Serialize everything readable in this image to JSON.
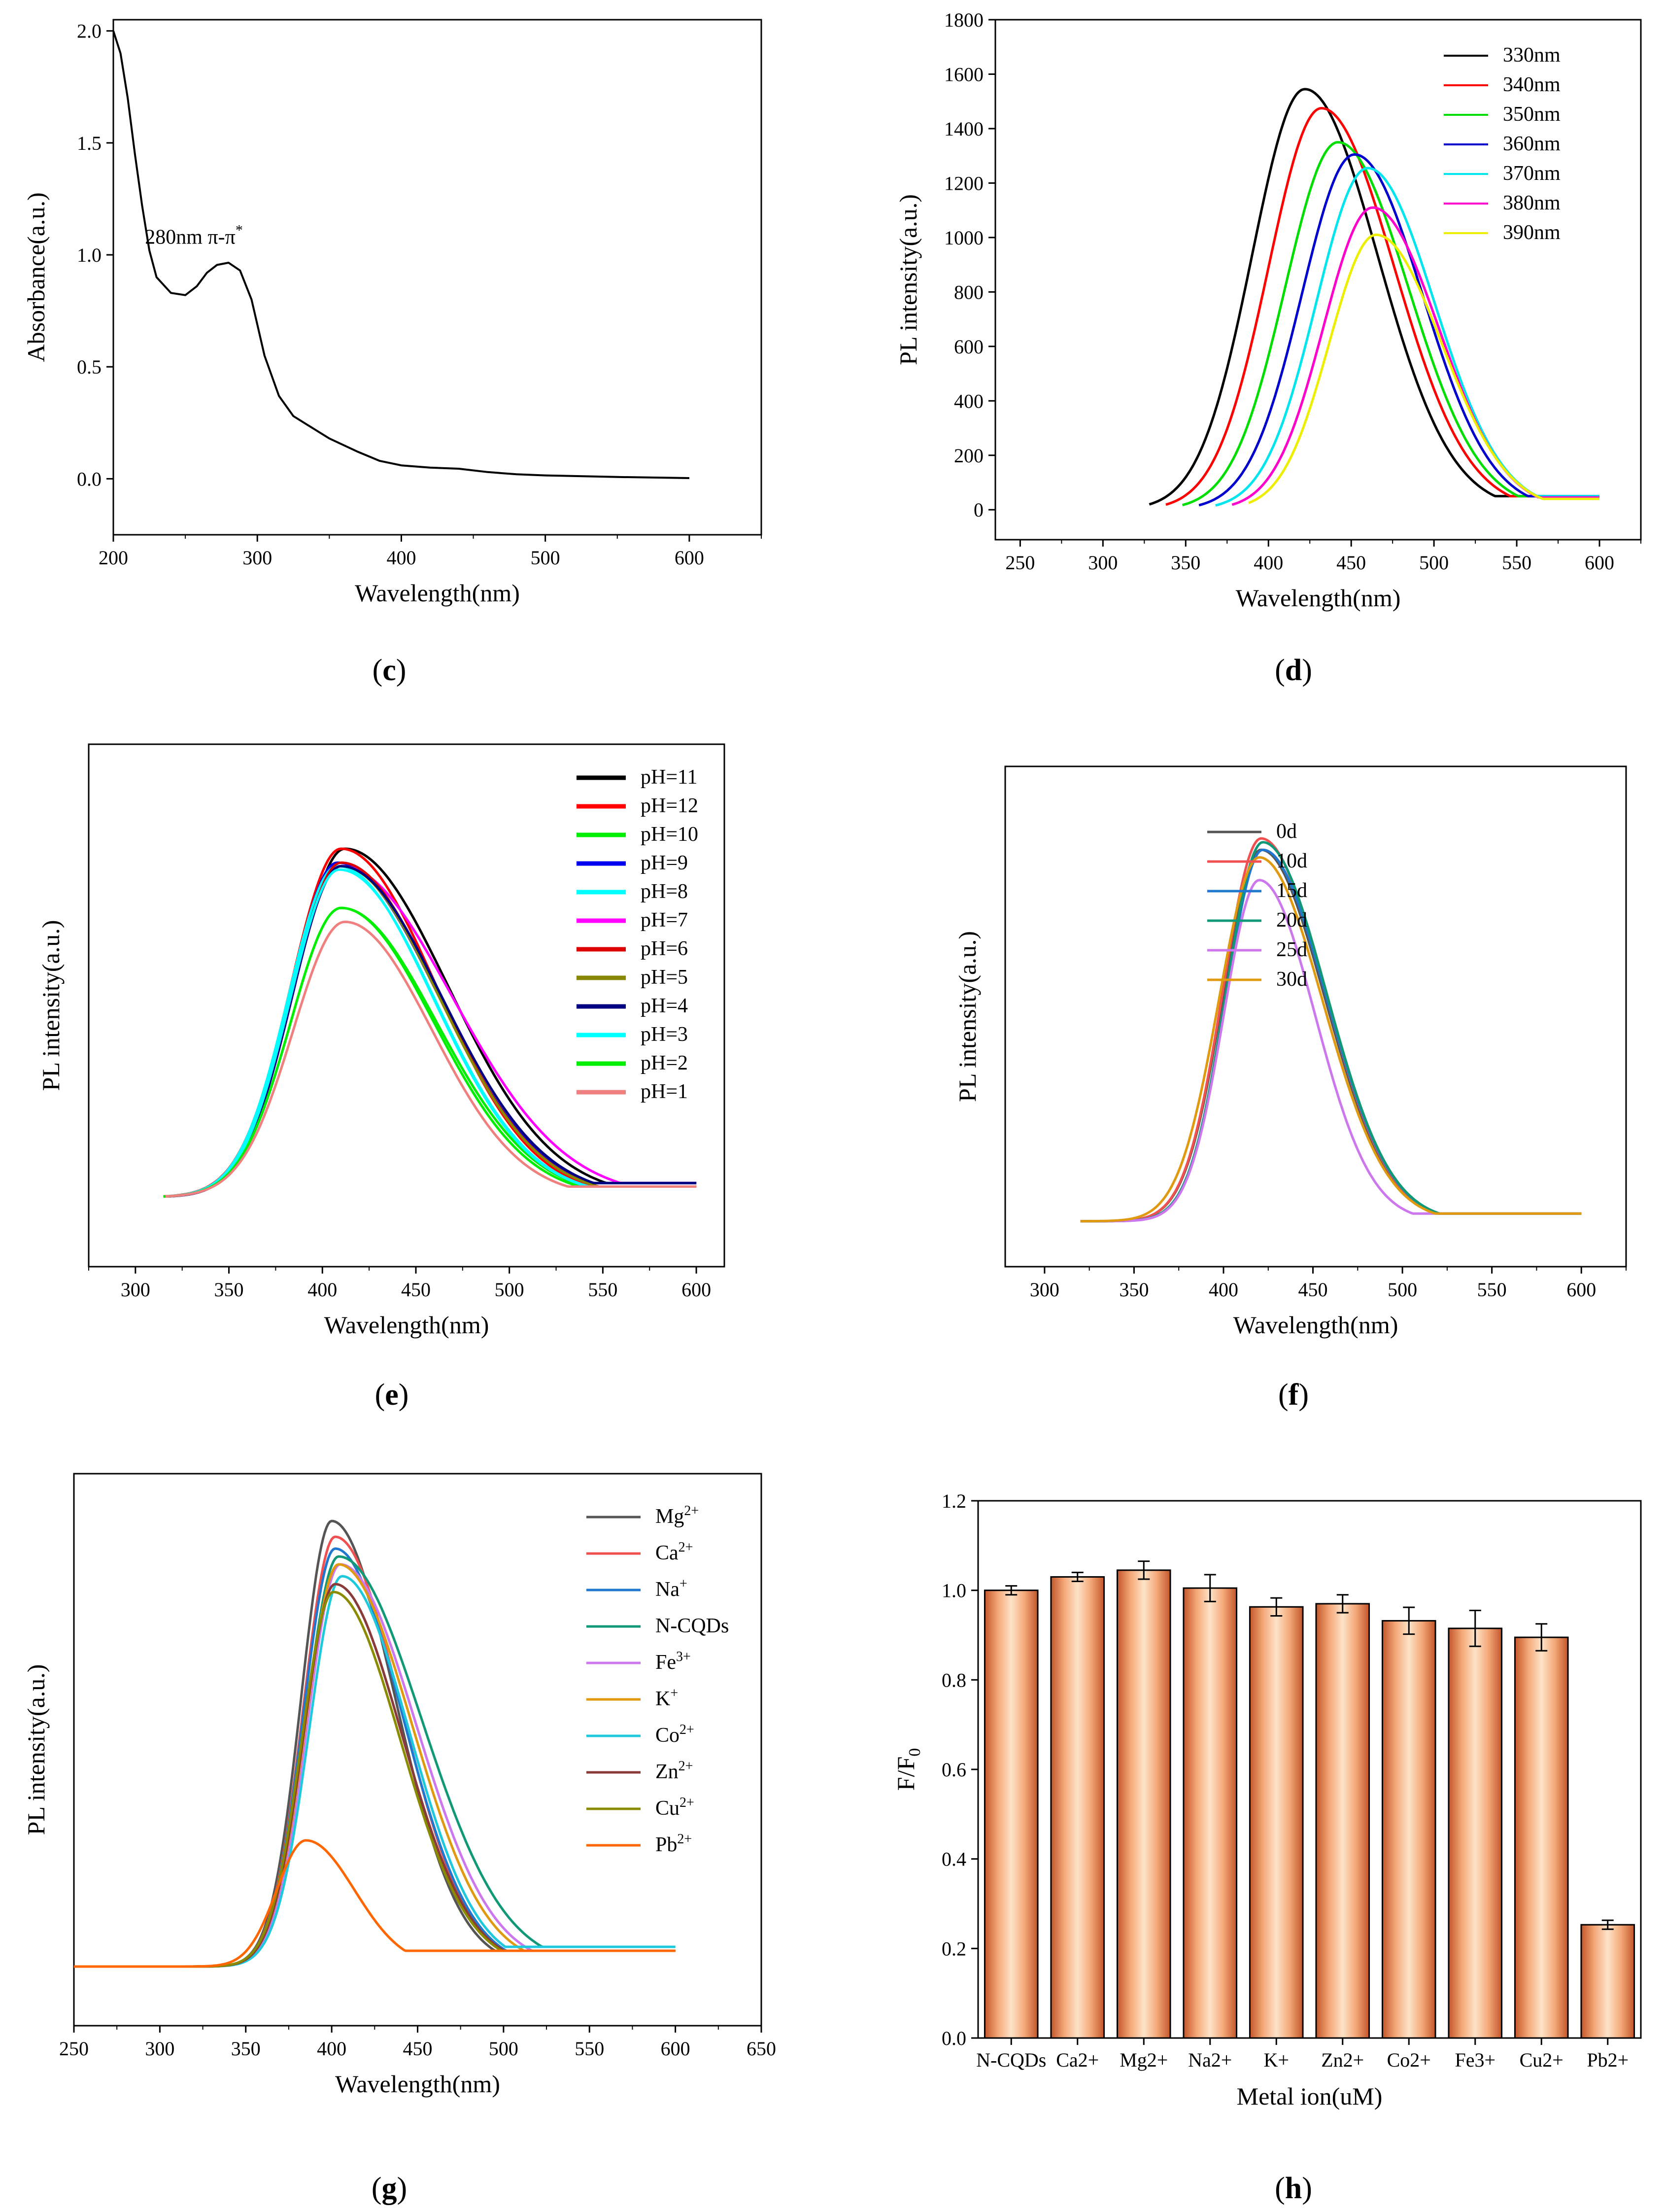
{
  "chart_data": [
    {
      "id": "c",
      "panel_label": "c",
      "type": "line",
      "title": "",
      "xlabel": "Wavelength(nm)",
      "ylabel": "Absorbance(a.u.)",
      "xlim": [
        200,
        650
      ],
      "ylim": [
        -0.25,
        2.05
      ],
      "xticks": [
        200,
        300,
        400,
        500,
        600
      ],
      "yticks": [
        0.0,
        0.5,
        1.0,
        1.5,
        2.0
      ],
      "ytick_labels": [
        "0.0",
        "0.5",
        "1.0",
        "1.5",
        "2.0"
      ],
      "annotation": {
        "text": "280nm π-π",
        "sup": "*",
        "x": 222,
        "y": 1.05
      },
      "series": [
        {
          "name": "Absorbance",
          "color": "#000000",
          "width": 4,
          "points": [
            [
              200,
              2.0
            ],
            [
              205,
              1.9
            ],
            [
              210,
              1.7
            ],
            [
              215,
              1.45
            ],
            [
              220,
              1.22
            ],
            [
              225,
              1.02
            ],
            [
              230,
              0.9
            ],
            [
              240,
              0.83
            ],
            [
              250,
              0.82
            ],
            [
              258,
              0.86
            ],
            [
              265,
              0.92
            ],
            [
              272,
              0.955
            ],
            [
              280,
              0.965
            ],
            [
              288,
              0.93
            ],
            [
              296,
              0.8
            ],
            [
              305,
              0.55
            ],
            [
              315,
              0.37
            ],
            [
              325,
              0.28
            ],
            [
              335,
              0.24
            ],
            [
              350,
              0.18
            ],
            [
              370,
              0.12
            ],
            [
              385,
              0.08
            ],
            [
              400,
              0.06
            ],
            [
              420,
              0.05
            ],
            [
              440,
              0.045
            ],
            [
              460,
              0.03
            ],
            [
              480,
              0.02
            ],
            [
              500,
              0.015
            ],
            [
              550,
              0.008
            ],
            [
              600,
              0.003
            ]
          ]
        }
      ]
    },
    {
      "id": "d",
      "panel_label": "d",
      "type": "line",
      "title": "",
      "xlabel": "Wavelength(nm)",
      "ylabel": "PL intensity(a.u.)",
      "xlim": [
        235,
        625
      ],
      "ylim": [
        -110,
        1800
      ],
      "xticks": [
        250,
        300,
        350,
        400,
        450,
        500,
        550,
        600
      ],
      "yticks": [
        0,
        200,
        400,
        600,
        800,
        1000,
        1200,
        1400,
        1600,
        1800
      ],
      "legend_position": "top-right",
      "series": [
        {
          "name": "330nm",
          "color": "#000000",
          "start": 328,
          "peak": 422,
          "amp": 1545,
          "sl": 45,
          "sr": 62,
          "end_val": 50
        },
        {
          "name": "340nm",
          "color": "#ff0000",
          "start": 338,
          "peak": 432,
          "amp": 1475,
          "sl": 45,
          "sr": 62,
          "end_val": 50
        },
        {
          "name": "350nm",
          "color": "#00dd00",
          "start": 348,
          "peak": 442,
          "amp": 1350,
          "sl": 45,
          "sr": 60,
          "end_val": 50
        },
        {
          "name": "360nm",
          "color": "#0000cc",
          "start": 358,
          "peak": 452,
          "amp": 1305,
          "sl": 45,
          "sr": 58,
          "end_val": 50
        },
        {
          "name": "370nm",
          "color": "#00e5ee",
          "start": 368,
          "peak": 460,
          "amp": 1255,
          "sl": 44,
          "sr": 57,
          "end_val": 50
        },
        {
          "name": "380nm",
          "color": "#ff00cc",
          "start": 378,
          "peak": 463,
          "amp": 1110,
          "sl": 42,
          "sr": 56,
          "end_val": 45
        },
        {
          "name": "390nm",
          "color": "#eeee00",
          "start": 388,
          "peak": 465,
          "amp": 1010,
          "sl": 40,
          "sr": 56,
          "end_val": 40
        }
      ]
    },
    {
      "id": "e",
      "panel_label": "e",
      "type": "line",
      "title": "",
      "xlabel": "Wavelength(nm)",
      "ylabel": "PL intensity(a.u.)",
      "xlim": [
        275,
        615
      ],
      "ylim": [
        -20,
        130
      ],
      "xticks": [
        300,
        350,
        400,
        450,
        500,
        550,
        600
      ],
      "yticks": [],
      "legend_position": "top-right",
      "series": [
        {
          "name": "pH=11",
          "color": "#000000",
          "start": 315,
          "peak": 412,
          "amp": 100,
          "sl": 38,
          "sr": 78,
          "end_val": 4
        },
        {
          "name": "pH=12",
          "color": "#ff0000",
          "start": 315,
          "peak": 410,
          "amp": 100,
          "sl": 38,
          "sr": 72,
          "end_val": 3
        },
        {
          "name": "pH=10",
          "color": "#00ee00",
          "start": 315,
          "peak": 410,
          "amp": 83,
          "sl": 38,
          "sr": 72,
          "end_val": 3
        },
        {
          "name": "pH=9",
          "color": "#0000ee",
          "start": 320,
          "peak": 408,
          "amp": 96,
          "sl": 36,
          "sr": 76,
          "end_val": 4
        },
        {
          "name": "pH=8",
          "color": "#00ffff",
          "start": 318,
          "peak": 408,
          "amp": 95,
          "sl": 37,
          "sr": 72,
          "end_val": 3
        },
        {
          "name": "pH=7",
          "color": "#ff00ff",
          "start": 318,
          "peak": 410,
          "amp": 95,
          "sl": 37,
          "sr": 84,
          "end_val": 4
        },
        {
          "name": "pH=6",
          "color": "#dd0000",
          "start": 317,
          "peak": 410,
          "amp": 96,
          "sl": 37,
          "sr": 74,
          "end_val": 3
        },
        {
          "name": "pH=5",
          "color": "#888800",
          "start": 317,
          "peak": 410,
          "amp": 95,
          "sl": 37,
          "sr": 74,
          "end_val": 3
        },
        {
          "name": "pH=4",
          "color": "#000080",
          "start": 318,
          "peak": 410,
          "amp": 95,
          "sl": 37,
          "sr": 76,
          "end_val": 4
        },
        {
          "name": "pH=3",
          "color": "#00ffff",
          "start": 318,
          "peak": 409,
          "amp": 94,
          "sl": 37,
          "sr": 72,
          "end_val": 3
        },
        {
          "name": "pH=2",
          "color": "#00ee00",
          "start": 316,
          "peak": 410,
          "amp": 83,
          "sl": 38,
          "sr": 70,
          "end_val": 3
        },
        {
          "name": "pH=1",
          "color": "#f08080",
          "start": 316,
          "peak": 412,
          "amp": 79,
          "sl": 39,
          "sr": 66,
          "end_val": 3
        }
      ]
    },
    {
      "id": "f",
      "panel_label": "f",
      "type": "line",
      "title": "",
      "xlabel": "Wavelength(nm)",
      "ylabel": "PL intensity(a.u.)",
      "xlim": [
        278,
        625
      ],
      "ylim": [
        -12,
        120
      ],
      "xticks": [
        300,
        350,
        400,
        450,
        500,
        550,
        600
      ],
      "yticks": [],
      "legend_position": "top-left",
      "series": [
        {
          "name": "0d",
          "color": "#555555",
          "start": 320,
          "peak": 421,
          "amp": 98,
          "sl": 30,
          "sr": 50,
          "end_val": 2
        },
        {
          "name": "10d",
          "color": "#f05050",
          "start": 320,
          "peak": 421,
          "amp": 101,
          "sl": 30,
          "sr": 50,
          "end_val": 2
        },
        {
          "name": "15d",
          "color": "#1f77d0",
          "start": 320,
          "peak": 422,
          "amp": 98,
          "sl": 29,
          "sr": 50,
          "end_val": 2
        },
        {
          "name": "20d",
          "color": "#119977",
          "start": 320,
          "peak": 422,
          "amp": 100,
          "sl": 29,
          "sr": 50,
          "end_val": 2
        },
        {
          "name": "25d",
          "color": "#cc77ee",
          "start": 320,
          "peak": 420,
          "amp": 90,
          "sl": 28,
          "sr": 44,
          "end_val": 2
        },
        {
          "name": "30d",
          "color": "#e09a10",
          "start": 320,
          "peak": 420,
          "amp": 96,
          "sl": 32,
          "sr": 50,
          "end_val": 2
        }
      ]
    },
    {
      "id": "g",
      "panel_label": "g",
      "type": "line",
      "title": "",
      "xlabel": "Wavelength(nm)",
      "ylabel": "PL intensity(a.u.)",
      "xlim": [
        250,
        650
      ],
      "ylim": [
        -15,
        125
      ],
      "xticks": [
        250,
        300,
        350,
        400,
        450,
        500,
        550,
        600,
        650
      ],
      "yticks": [],
      "legend_position": "top-right",
      "legend_sup": [
        "2+",
        "2+",
        "+",
        "",
        "3+",
        "+",
        "2+",
        "2+",
        "2+",
        "2+"
      ],
      "legend_base": [
        "Mg",
        "Ca",
        "Na",
        "N-CQDs",
        "Fe",
        "K",
        "Co",
        "Zn",
        "Cu",
        "Pb"
      ],
      "series": [
        {
          "name": "Mg2+",
          "color": "#555555",
          "start": 250,
          "peak": 400,
          "amp": 113,
          "sl": 25,
          "sr": 52,
          "end_val": 4
        },
        {
          "name": "Ca2+",
          "color": "#f05050",
          "start": 250,
          "peak": 402,
          "amp": 109,
          "sl": 26,
          "sr": 54,
          "end_val": 4
        },
        {
          "name": "Na+",
          "color": "#1f77d0",
          "start": 250,
          "peak": 402,
          "amp": 106,
          "sl": 26,
          "sr": 55,
          "end_val": 4
        },
        {
          "name": "N-CQDs",
          "color": "#119977",
          "start": 250,
          "peak": 404,
          "amp": 104,
          "sl": 27,
          "sr": 68,
          "end_val": 5
        },
        {
          "name": "Fe3+",
          "color": "#cc77ee",
          "start": 250,
          "peak": 405,
          "amp": 102,
          "sl": 27,
          "sr": 62,
          "end_val": 4
        },
        {
          "name": "K+",
          "color": "#e09a10",
          "start": 250,
          "peak": 404,
          "amp": 102,
          "sl": 27,
          "sr": 60,
          "end_val": 4
        },
        {
          "name": "Co2+",
          "color": "#1ec8dd",
          "start": 250,
          "peak": 406,
          "amp": 99,
          "sl": 27,
          "sr": 55,
          "end_val": 5
        },
        {
          "name": "Zn2+",
          "color": "#8b3a3a",
          "start": 250,
          "peak": 402,
          "amp": 97,
          "sl": 26,
          "sr": 55,
          "end_val": 4
        },
        {
          "name": "Cu2+",
          "color": "#8b8b00",
          "start": 250,
          "peak": 401,
          "amp": 95,
          "sl": 26,
          "sr": 55,
          "end_val": 4
        },
        {
          "name": "Pb2+",
          "color": "#ff6600",
          "start": 250,
          "peak": 385,
          "amp": 32,
          "sl": 24,
          "sr": 40,
          "end_val": 4
        }
      ]
    },
    {
      "id": "h",
      "panel_label": "h",
      "type": "bar",
      "title": "",
      "xlabel": "Metal ion(uM)",
      "ylabel": "F/F",
      "ylabel_sub": "0",
      "ylim": [
        0.0,
        1.2
      ],
      "yticks": [
        0.0,
        0.2,
        0.4,
        0.6,
        0.8,
        1.0,
        1.2
      ],
      "ytick_labels": [
        "0.0",
        "0.2",
        "0.4",
        "0.6",
        "0.8",
        "1.0",
        "1.2"
      ],
      "categories": [
        "N-CQDs",
        "Ca2+",
        "Mg2+",
        "Na2+",
        "K+",
        "Zn2+",
        "Co2+",
        "Fe3+",
        "Cu2+",
        "Pb2+"
      ],
      "values": [
        1.0,
        1.03,
        1.045,
        1.005,
        0.963,
        0.97,
        0.932,
        0.915,
        0.895,
        0.253
      ],
      "errors": [
        0.01,
        0.01,
        0.02,
        0.03,
        0.02,
        0.02,
        0.03,
        0.04,
        0.03,
        0.01
      ]
    }
  ]
}
